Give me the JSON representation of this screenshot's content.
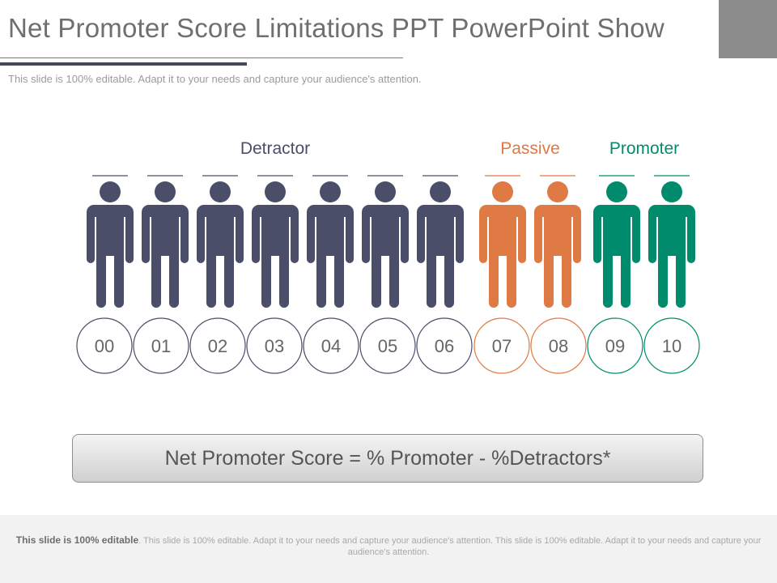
{
  "header": {
    "title": "Net Promoter Score Limitations PPT PowerPoint Show",
    "subtitle": "This slide is 100% editable. Adapt it to your needs and capture your audience's attention."
  },
  "groups": [
    {
      "label": "Detractor",
      "color": "#4a4e69",
      "range": [
        0,
        6
      ]
    },
    {
      "label": "Passive",
      "color": "#e07a44",
      "range": [
        7,
        8
      ]
    },
    {
      "label": "Promoter",
      "color": "#008c6c",
      "range": [
        9,
        10
      ]
    }
  ],
  "scores": [
    "00",
    "01",
    "02",
    "03",
    "04",
    "05",
    "06",
    "07",
    "08",
    "09",
    "10"
  ],
  "icon": "person-icon",
  "formula": "Net Promoter Score = % Promoter - %Detractors*",
  "footer": {
    "bold": "This slide is 100% editable",
    "text": ". This slide is 100% editable. Adapt it to your needs and capture your audience's attention. This slide is 100% editable. Adapt it to your needs and capture your audience's attention."
  }
}
